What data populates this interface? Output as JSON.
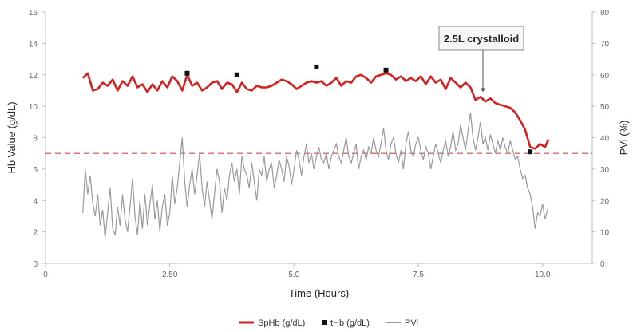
{
  "chart_data": {
    "type": "line",
    "x_axis": {
      "label": "Time (Hours)",
      "range": [
        0,
        11.0
      ],
      "ticks": [
        "0",
        "2.50",
        "5.0",
        "7.5",
        "10.0"
      ],
      "tick_values": [
        0,
        2.5,
        5.0,
        7.5,
        10.0
      ]
    },
    "y_left": {
      "label": "Hb Value (g/dL)",
      "range": [
        0,
        16
      ],
      "ticks": [
        "0",
        "2",
        "4",
        "6",
        "8",
        "10",
        "12",
        "14",
        "16"
      ]
    },
    "y_right": {
      "label": "PVi (%)",
      "range": [
        0,
        80
      ],
      "ticks": [
        "0",
        "10",
        "20",
        "30",
        "40",
        "50",
        "60",
        "70",
        "80"
      ]
    },
    "threshold": {
      "value": 7,
      "axis": "left",
      "color": "#d64545"
    },
    "annotation": {
      "text": "2.5L crystalloid",
      "x": 8.8,
      "y": 10.8
    },
    "colors": {
      "sphb": "#d42020",
      "thb": "#111111",
      "pvi": "#9a9a9a"
    },
    "series": [
      {
        "name": "SpHb (g/dL)",
        "axis": "left",
        "points": [
          [
            0.75,
            11.8
          ],
          [
            0.85,
            12.1
          ],
          [
            0.95,
            11.0
          ],
          [
            1.05,
            11.1
          ],
          [
            1.15,
            11.5
          ],
          [
            1.25,
            11.3
          ],
          [
            1.35,
            11.7
          ],
          [
            1.45,
            11.0
          ],
          [
            1.55,
            11.6
          ],
          [
            1.65,
            11.3
          ],
          [
            1.75,
            11.9
          ],
          [
            1.85,
            11.2
          ],
          [
            1.95,
            11.4
          ],
          [
            2.05,
            10.9
          ],
          [
            2.15,
            11.4
          ],
          [
            2.25,
            11.0
          ],
          [
            2.35,
            11.6
          ],
          [
            2.45,
            11.2
          ],
          [
            2.55,
            11.9
          ],
          [
            2.65,
            11.6
          ],
          [
            2.75,
            11.0
          ],
          [
            2.85,
            12.0
          ],
          [
            2.95,
            11.3
          ],
          [
            3.05,
            11.5
          ],
          [
            3.15,
            11.0
          ],
          [
            3.25,
            11.2
          ],
          [
            3.35,
            11.5
          ],
          [
            3.45,
            11.6
          ],
          [
            3.55,
            11.1
          ],
          [
            3.65,
            11.5
          ],
          [
            3.75,
            11.4
          ],
          [
            3.85,
            10.9
          ],
          [
            3.95,
            11.5
          ],
          [
            4.05,
            11.1
          ],
          [
            4.15,
            11.0
          ],
          [
            4.25,
            11.3
          ],
          [
            4.35,
            11.2
          ],
          [
            4.45,
            11.2
          ],
          [
            4.55,
            11.3
          ],
          [
            4.65,
            11.5
          ],
          [
            4.75,
            11.7
          ],
          [
            4.85,
            11.6
          ],
          [
            4.95,
            11.4
          ],
          [
            5.05,
            11.1
          ],
          [
            5.15,
            11.3
          ],
          [
            5.25,
            11.5
          ],
          [
            5.35,
            11.6
          ],
          [
            5.45,
            11.5
          ],
          [
            5.55,
            11.6
          ],
          [
            5.65,
            11.3
          ],
          [
            5.75,
            11.5
          ],
          [
            5.85,
            11.8
          ],
          [
            5.95,
            11.3
          ],
          [
            6.05,
            11.6
          ],
          [
            6.15,
            11.5
          ],
          [
            6.25,
            11.9
          ],
          [
            6.35,
            12.0
          ],
          [
            6.45,
            11.8
          ],
          [
            6.55,
            11.5
          ],
          [
            6.65,
            11.9
          ],
          [
            6.75,
            12.0
          ],
          [
            6.85,
            12.1
          ],
          [
            6.95,
            12.0
          ],
          [
            7.05,
            11.7
          ],
          [
            7.15,
            11.9
          ],
          [
            7.25,
            11.6
          ],
          [
            7.35,
            11.8
          ],
          [
            7.45,
            11.6
          ],
          [
            7.55,
            11.9
          ],
          [
            7.65,
            11.4
          ],
          [
            7.75,
            11.9
          ],
          [
            7.85,
            11.5
          ],
          [
            7.95,
            11.7
          ],
          [
            8.05,
            11.1
          ],
          [
            8.15,
            11.8
          ],
          [
            8.25,
            11.5
          ],
          [
            8.35,
            11.2
          ],
          [
            8.45,
            11.5
          ],
          [
            8.55,
            11.2
          ],
          [
            8.65,
            10.4
          ],
          [
            8.75,
            10.6
          ],
          [
            8.85,
            10.3
          ],
          [
            8.95,
            10.5
          ],
          [
            9.05,
            10.2
          ],
          [
            9.15,
            10.1
          ],
          [
            9.25,
            10.0
          ],
          [
            9.35,
            9.9
          ],
          [
            9.45,
            9.6
          ],
          [
            9.55,
            9.1
          ],
          [
            9.65,
            8.5
          ],
          [
            9.75,
            7.4
          ],
          [
            9.85,
            7.3
          ],
          [
            9.95,
            7.6
          ],
          [
            10.05,
            7.4
          ],
          [
            10.12,
            7.9
          ]
        ]
      },
      {
        "name": "tHb (g/dL)",
        "axis": "left",
        "points": [
          [
            2.85,
            12.1
          ],
          [
            3.85,
            12.0
          ],
          [
            5.45,
            12.5
          ],
          [
            6.85,
            12.3
          ],
          [
            9.75,
            7.1
          ]
        ]
      },
      {
        "name": "PVi",
        "axis": "right",
        "points": [
          [
            0.75,
            16
          ],
          [
            0.8,
            30
          ],
          [
            0.85,
            22
          ],
          [
            0.9,
            28
          ],
          [
            0.95,
            19
          ],
          [
            1.0,
            15
          ],
          [
            1.05,
            22
          ],
          [
            1.1,
            12
          ],
          [
            1.15,
            17
          ],
          [
            1.2,
            8
          ],
          [
            1.25,
            16
          ],
          [
            1.3,
            24
          ],
          [
            1.35,
            11
          ],
          [
            1.4,
            9
          ],
          [
            1.45,
            18
          ],
          [
            1.5,
            12
          ],
          [
            1.55,
            22
          ],
          [
            1.6,
            14
          ],
          [
            1.65,
            10
          ],
          [
            1.7,
            18
          ],
          [
            1.75,
            27
          ],
          [
            1.8,
            15
          ],
          [
            1.85,
            9
          ],
          [
            1.9,
            20
          ],
          [
            1.95,
            11
          ],
          [
            2.0,
            22
          ],
          [
            2.05,
            12
          ],
          [
            2.1,
            19
          ],
          [
            2.15,
            25
          ],
          [
            2.2,
            14
          ],
          [
            2.25,
            20
          ],
          [
            2.3,
            10
          ],
          [
            2.35,
            18
          ],
          [
            2.4,
            22
          ],
          [
            2.45,
            12
          ],
          [
            2.5,
            16
          ],
          [
            2.55,
            28
          ],
          [
            2.6,
            19
          ],
          [
            2.65,
            24
          ],
          [
            2.7,
            32
          ],
          [
            2.75,
            40
          ],
          [
            2.8,
            26
          ],
          [
            2.85,
            18
          ],
          [
            2.9,
            25
          ],
          [
            2.95,
            30
          ],
          [
            3.0,
            22
          ],
          [
            3.05,
            28
          ],
          [
            3.1,
            35
          ],
          [
            3.15,
            24
          ],
          [
            3.2,
            18
          ],
          [
            3.25,
            26
          ],
          [
            3.3,
            20
          ],
          [
            3.35,
            14
          ],
          [
            3.4,
            22
          ],
          [
            3.45,
            30
          ],
          [
            3.5,
            26
          ],
          [
            3.55,
            16
          ],
          [
            3.6,
            24
          ],
          [
            3.65,
            20
          ],
          [
            3.7,
            28
          ],
          [
            3.75,
            32
          ],
          [
            3.8,
            26
          ],
          [
            3.85,
            30
          ],
          [
            3.9,
            22
          ],
          [
            3.95,
            34
          ],
          [
            4.0,
            30
          ],
          [
            4.05,
            28
          ],
          [
            4.1,
            24
          ],
          [
            4.15,
            32
          ],
          [
            4.2,
            26
          ],
          [
            4.25,
            20
          ],
          [
            4.3,
            30
          ],
          [
            4.35,
            28
          ],
          [
            4.4,
            34
          ],
          [
            4.45,
            26
          ],
          [
            4.5,
            30
          ],
          [
            4.55,
            32
          ],
          [
            4.6,
            24
          ],
          [
            4.65,
            28
          ],
          [
            4.7,
            33
          ],
          [
            4.75,
            30
          ],
          [
            4.8,
            26
          ],
          [
            4.85,
            34
          ],
          [
            4.9,
            31
          ],
          [
            4.95,
            25
          ],
          [
            5.0,
            30
          ],
          [
            5.05,
            36
          ],
          [
            5.1,
            33
          ],
          [
            5.15,
            28
          ],
          [
            5.2,
            34
          ],
          [
            5.25,
            38
          ],
          [
            5.3,
            32
          ],
          [
            5.35,
            35
          ],
          [
            5.4,
            30
          ],
          [
            5.45,
            34
          ],
          [
            5.5,
            37
          ],
          [
            5.55,
            33
          ],
          [
            5.6,
            32
          ],
          [
            5.65,
            35
          ],
          [
            5.7,
            30
          ],
          [
            5.75,
            34
          ],
          [
            5.8,
            36
          ],
          [
            5.85,
            38
          ],
          [
            5.9,
            34
          ],
          [
            5.95,
            32
          ],
          [
            6.0,
            36
          ],
          [
            6.05,
            40
          ],
          [
            6.1,
            34
          ],
          [
            6.15,
            32
          ],
          [
            6.2,
            35
          ],
          [
            6.25,
            38
          ],
          [
            6.3,
            30
          ],
          [
            6.35,
            34
          ],
          [
            6.4,
            36
          ],
          [
            6.45,
            33
          ],
          [
            6.5,
            37
          ],
          [
            6.55,
            35
          ],
          [
            6.6,
            40
          ],
          [
            6.65,
            36
          ],
          [
            6.7,
            34
          ],
          [
            6.75,
            38
          ],
          [
            6.8,
            43
          ],
          [
            6.85,
            36
          ],
          [
            6.9,
            33
          ],
          [
            6.95,
            38
          ],
          [
            7.0,
            40
          ],
          [
            7.05,
            35
          ],
          [
            7.1,
            32
          ],
          [
            7.15,
            36
          ],
          [
            7.2,
            30
          ],
          [
            7.25,
            38
          ],
          [
            7.3,
            42
          ],
          [
            7.35,
            36
          ],
          [
            7.4,
            34
          ],
          [
            7.45,
            38
          ],
          [
            7.5,
            40
          ],
          [
            7.55,
            36
          ],
          [
            7.6,
            33
          ],
          [
            7.65,
            37
          ],
          [
            7.7,
            35
          ],
          [
            7.75,
            30
          ],
          [
            7.8,
            34
          ],
          [
            7.85,
            38
          ],
          [
            7.9,
            35
          ],
          [
            7.95,
            32
          ],
          [
            8.0,
            36
          ],
          [
            8.05,
            39
          ],
          [
            8.1,
            34
          ],
          [
            8.15,
            37
          ],
          [
            8.2,
            42
          ],
          [
            8.25,
            36
          ],
          [
            8.3,
            38
          ],
          [
            8.35,
            44
          ],
          [
            8.4,
            40
          ],
          [
            8.45,
            36
          ],
          [
            8.5,
            42
          ],
          [
            8.55,
            48
          ],
          [
            8.6,
            40
          ],
          [
            8.65,
            36
          ],
          [
            8.7,
            40
          ],
          [
            8.75,
            45
          ],
          [
            8.8,
            38
          ],
          [
            8.85,
            40
          ],
          [
            8.9,
            36
          ],
          [
            8.95,
            41
          ],
          [
            9.0,
            38
          ],
          [
            9.05,
            35
          ],
          [
            9.1,
            39
          ],
          [
            9.15,
            36
          ],
          [
            9.2,
            40
          ],
          [
            9.25,
            37
          ],
          [
            9.3,
            35
          ],
          [
            9.35,
            39
          ],
          [
            9.4,
            36
          ],
          [
            9.45,
            33
          ],
          [
            9.5,
            34
          ],
          [
            9.55,
            30
          ],
          [
            9.6,
            27
          ],
          [
            9.65,
            28
          ],
          [
            9.7,
            24
          ],
          [
            9.75,
            22
          ],
          [
            9.8,
            18
          ],
          [
            9.85,
            11
          ],
          [
            9.9,
            16
          ],
          [
            9.95,
            15
          ],
          [
            10.0,
            19
          ],
          [
            10.05,
            14
          ],
          [
            10.1,
            17
          ],
          [
            10.12,
            18
          ]
        ]
      }
    ]
  }
}
